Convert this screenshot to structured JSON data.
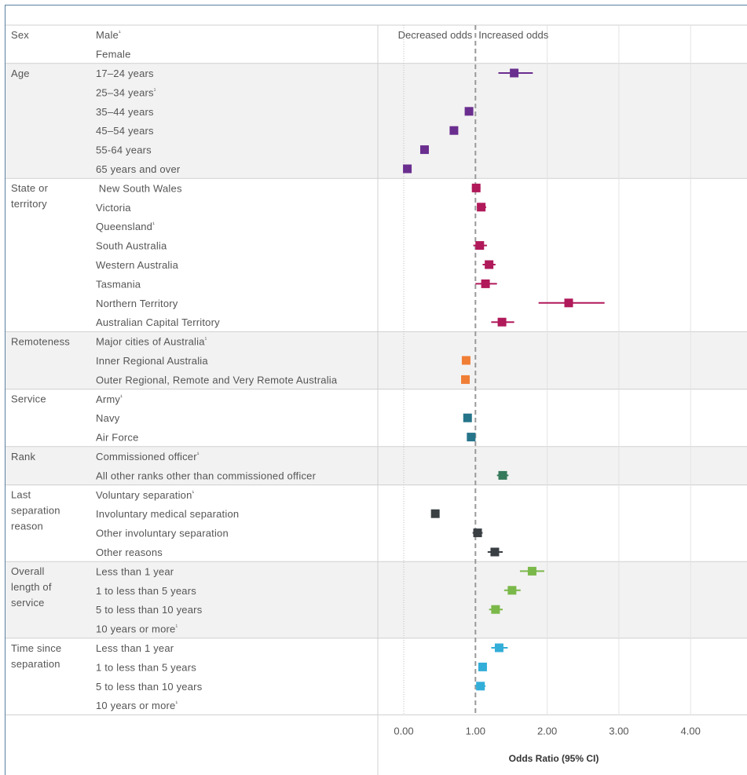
{
  "chart_data": {
    "type": "scatter",
    "subtype": "forest-plot",
    "xlabel": "Odds Ratio (95% CI)",
    "x_ticks": [
      "0.00",
      "1.00",
      "2.00",
      "3.00",
      "4.00"
    ],
    "xlim": [
      0,
      4.4
    ],
    "reference_line": 1.0,
    "header_left": "Decreased odds",
    "header_right": "Increased odds",
    "groups": [
      {
        "name": "Sex",
        "color": "#6a2e8f",
        "shaded": false,
        "rows": [
          {
            "label": "Male",
            "ref": true
          },
          {
            "label": "Female"
          }
        ]
      },
      {
        "name": "Age",
        "color": "#6a2e8f",
        "shaded": true,
        "rows": [
          {
            "label": "17–24 years",
            "or": 1.54,
            "lo": 1.32,
            "hi": 1.8
          },
          {
            "label": "25–34 years",
            "ref": true
          },
          {
            "label": "35–44 years",
            "or": 0.91
          },
          {
            "label": "45–54 years",
            "or": 0.7
          },
          {
            "label": "55-64 years",
            "or": 0.29
          },
          {
            "label": "65 years and over",
            "or": 0.05
          }
        ]
      },
      {
        "name": "State or territory",
        "color": "#b0195a",
        "shaded": false,
        "rows": [
          {
            "label": " New South Wales",
            "or": 1.01,
            "lo": 0.95,
            "hi": 1.07
          },
          {
            "label": "Victoria",
            "or": 1.08,
            "lo": 1.02,
            "hi": 1.15
          },
          {
            "label": "Queensland",
            "ref": true
          },
          {
            "label": "South Australia",
            "or": 1.06,
            "lo": 0.97,
            "hi": 1.16
          },
          {
            "label": "Western Australia",
            "or": 1.19,
            "lo": 1.1,
            "hi": 1.28
          },
          {
            "label": "Tasmania",
            "or": 1.14,
            "lo": 1.0,
            "hi": 1.3
          },
          {
            "label": "Northern Territory",
            "or": 2.3,
            "lo": 1.88,
            "hi": 2.8
          },
          {
            "label": "Australian Capital Territory",
            "or": 1.37,
            "lo": 1.22,
            "hi": 1.54
          }
        ]
      },
      {
        "name": "Remoteness",
        "color": "#f07e35",
        "shaded": true,
        "rows": [
          {
            "label": "Major cities of Australia",
            "ref": true
          },
          {
            "label": "Inner Regional Australia",
            "or": 0.87
          },
          {
            "label": "Outer Regional, Remote and Very Remote Australia",
            "or": 0.86
          }
        ]
      },
      {
        "name": "Service",
        "color": "#25748a",
        "shaded": false,
        "rows": [
          {
            "label": "Army",
            "ref": true
          },
          {
            "label": "Navy",
            "or": 0.89
          },
          {
            "label": "Air Force",
            "or": 0.94
          }
        ]
      },
      {
        "name": "Rank",
        "color": "#357a5a",
        "shaded": true,
        "rows": [
          {
            "label": "Commissioned officer",
            "ref": true
          },
          {
            "label": "All other ranks other than commissioned officer",
            "or": 1.38,
            "lo": 1.3,
            "hi": 1.46
          }
        ]
      },
      {
        "name": "Last separation reason",
        "color": "#3a3f44",
        "shaded": false,
        "rows": [
          {
            "label": "Voluntary separation",
            "ref": true
          },
          {
            "label": "Involuntary medical separation",
            "or": 0.44
          },
          {
            "label": "Other involuntary separation",
            "or": 1.03,
            "lo": 0.96,
            "hi": 1.1
          },
          {
            "label": "Other reasons",
            "or": 1.27,
            "lo": 1.17,
            "hi": 1.38
          }
        ]
      },
      {
        "name": "Overall length of service",
        "color": "#7bb84a",
        "shaded": true,
        "rows": [
          {
            "label": "Less than 1 year",
            "or": 1.79,
            "lo": 1.62,
            "hi": 1.96
          },
          {
            "label": "1 to less than 5 years",
            "or": 1.51,
            "lo": 1.4,
            "hi": 1.63
          },
          {
            "label": "5 to less than 10 years",
            "or": 1.28,
            "lo": 1.19,
            "hi": 1.38
          },
          {
            "label": "10 years or more",
            "ref": true
          }
        ]
      },
      {
        "name": "Time since separation",
        "color": "#33aed8",
        "shaded": false,
        "rows": [
          {
            "label": "Less than 1 year",
            "or": 1.33,
            "lo": 1.22,
            "hi": 1.45
          },
          {
            "label": "1 to less than 5 years",
            "or": 1.1,
            "lo": 1.04,
            "hi": 1.16
          },
          {
            "label": "5 to less than 10 years",
            "or": 1.07,
            "lo": 1.0,
            "hi": 1.14
          },
          {
            "label": "10 years or more",
            "ref": true
          }
        ]
      }
    ],
    "ref_marker": "¹"
  }
}
